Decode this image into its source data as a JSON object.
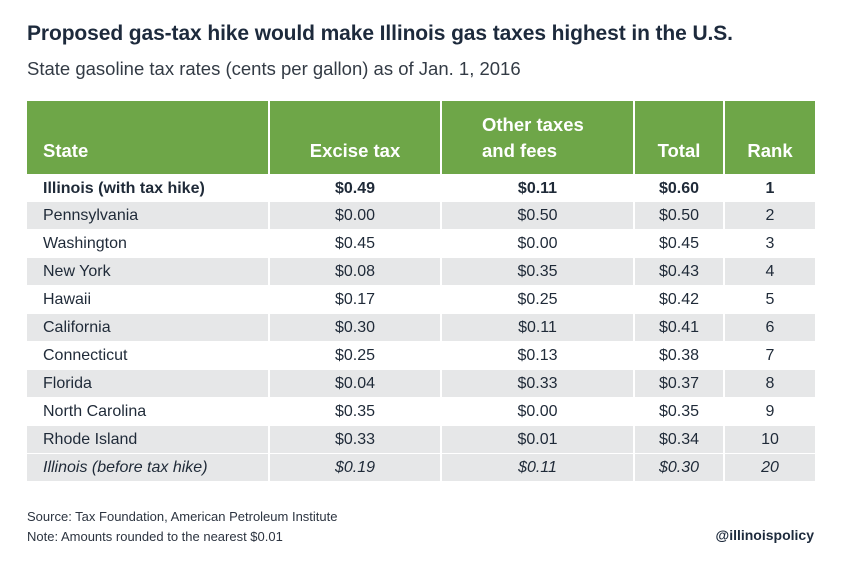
{
  "title": "Proposed gas-tax hike would make Illinois gas taxes highest in the U.S.",
  "subtitle": "State gasoline tax rates (cents per gallon) as of Jan. 1, 2016",
  "table": {
    "headers": {
      "state": "State",
      "excise": "Excise tax",
      "other_line1": "Other taxes",
      "other_line2": "and fees",
      "total": "Total",
      "rank": "Rank"
    },
    "rows": [
      {
        "state": "Illinois (with tax hike)",
        "excise": "$0.49",
        "other": "$0.11",
        "total": "$0.60",
        "rank": "1"
      },
      {
        "state": "Pennsylvania",
        "excise": "$0.00",
        "other": "$0.50",
        "total": "$0.50",
        "rank": "2"
      },
      {
        "state": "Washington",
        "excise": "$0.45",
        "other": "$0.00",
        "total": "$0.45",
        "rank": "3"
      },
      {
        "state": "New York",
        "excise": "$0.08",
        "other": "$0.35",
        "total": "$0.43",
        "rank": "4"
      },
      {
        "state": "Hawaii",
        "excise": "$0.17",
        "other": "$0.25",
        "total": "$0.42",
        "rank": "5"
      },
      {
        "state": "California",
        "excise": "$0.30",
        "other": "$0.11",
        "total": "$0.41",
        "rank": "6"
      },
      {
        "state": "Connecticut",
        "excise": "$0.25",
        "other": "$0.13",
        "total": "$0.38",
        "rank": "7"
      },
      {
        "state": "Florida",
        "excise": "$0.04",
        "other": "$0.33",
        "total": "$0.37",
        "rank": "8"
      },
      {
        "state": "North Carolina",
        "excise": "$0.35",
        "other": "$0.00",
        "total": "$0.35",
        "rank": "9"
      },
      {
        "state": "Rhode Island",
        "excise": "$0.33",
        "other": "$0.01",
        "total": "$0.34",
        "rank": "10"
      },
      {
        "state": "Illinois (before tax hike)",
        "excise": "$0.19",
        "other": "$0.11",
        "total": "$0.30",
        "rank": "20"
      }
    ]
  },
  "footer": {
    "source": "Source: Tax Foundation, American Petroleum Institute",
    "note": "Note: Amounts rounded to the nearest $0.01",
    "handle": "@illinoispolicy"
  },
  "colors": {
    "header_green": "#6ea648",
    "stripe_gray": "#e6e7e8",
    "title_navy": "#1d2a3c"
  }
}
